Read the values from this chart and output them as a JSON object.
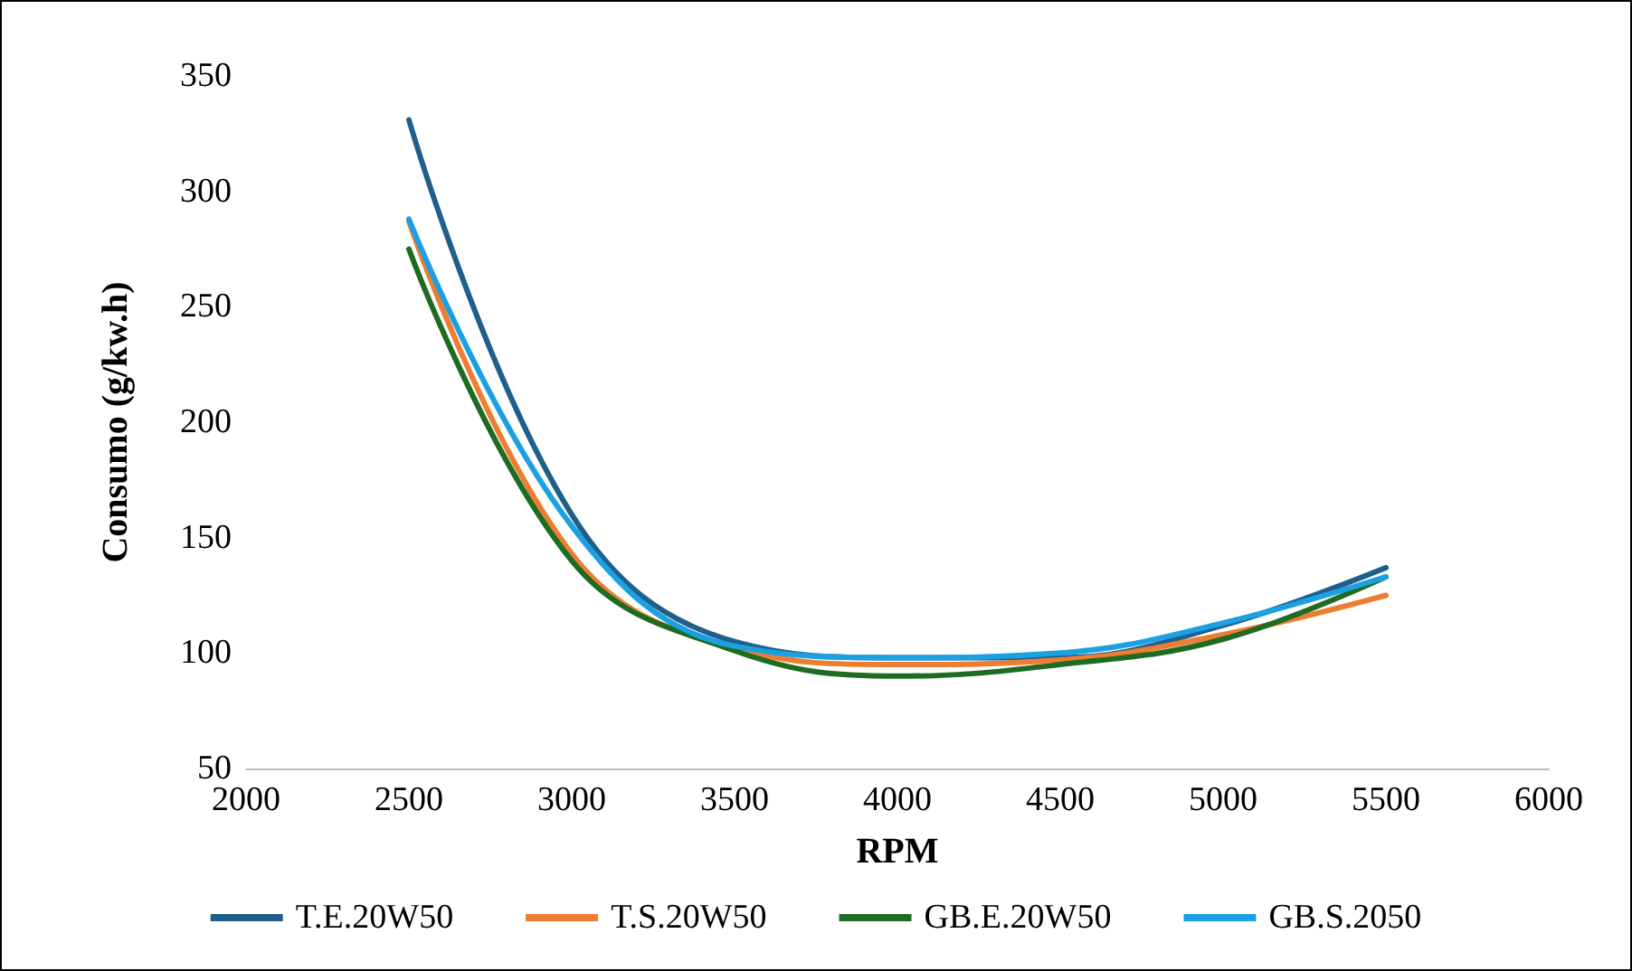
{
  "chart_data": {
    "type": "line",
    "xlabel": "RPM",
    "ylabel": "Consumo (g/kw.h)",
    "x": [
      2500,
      3000,
      3500,
      4000,
      4500,
      5000,
      5500
    ],
    "series": [
      {
        "name": "T.E.20W50",
        "color": "#1f5f8b",
        "values": [
          331,
          160,
          105,
          98,
          98,
          112,
          137
        ]
      },
      {
        "name": "T.S.20W50",
        "color": "#ed7d31",
        "values": [
          287,
          143,
          102,
          95,
          97,
          108,
          125
        ]
      },
      {
        "name": "GB.E.20W50",
        "color": "#1e6b22",
        "values": [
          275,
          140,
          101,
          90,
          95,
          106,
          133
        ]
      },
      {
        "name": "GB.S.2050",
        "color": "#1ba1e2",
        "values": [
          288,
          155,
          103,
          98,
          100,
          113,
          133
        ]
      }
    ],
    "xlim": [
      2000,
      6000
    ],
    "xticks": [
      2000,
      2500,
      3000,
      3500,
      4000,
      4500,
      5000,
      5500,
      6000
    ],
    "ylim": [
      50,
      350
    ],
    "yticks": [
      50,
      100,
      150,
      200,
      250,
      300,
      350
    ],
    "grid": false,
    "legend": "bottom",
    "marker": "none",
    "line_style": "solid"
  }
}
